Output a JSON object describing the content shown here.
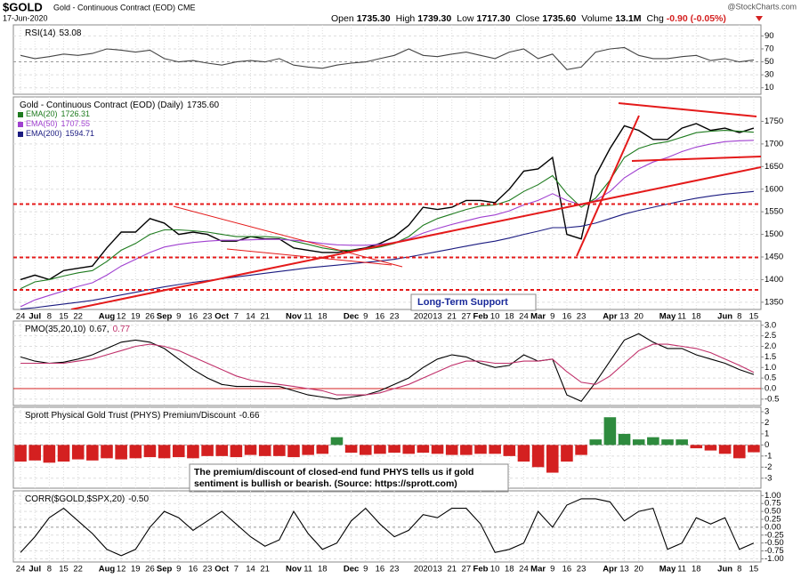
{
  "header": {
    "symbol": "$GOLD",
    "name": "Gold - Continuous Contract (EOD) CME",
    "date": "17-Jun-2020",
    "watermark": "@StockCharts.com",
    "quote": [
      {
        "label": "Open",
        "value": "1735.30"
      },
      {
        "label": "High",
        "value": "1739.30"
      },
      {
        "label": "Low",
        "value": "1717.30"
      },
      {
        "label": "Close",
        "value": "1735.60"
      },
      {
        "label": "Volume",
        "value": "13.1M"
      },
      {
        "label": "Chg",
        "value": "-0.90 (-0.05%)"
      }
    ]
  },
  "chart_data": [
    {
      "type": "line",
      "label": "RSI(14)",
      "last": "53.08",
      "ylim": [
        0,
        107
      ],
      "yticks": [
        10,
        30,
        50,
        70,
        90
      ],
      "grid": true,
      "series": [
        {
          "name": "RSI(14)",
          "color": "#444444",
          "values": [
            60,
            55,
            58,
            62,
            60,
            63,
            70,
            68,
            65,
            68,
            55,
            50,
            52,
            48,
            45,
            50,
            52,
            50,
            55,
            45,
            42,
            40,
            45,
            48,
            50,
            55,
            60,
            70,
            60,
            58,
            62,
            65,
            60,
            55,
            65,
            70,
            55,
            62,
            38,
            42,
            65,
            70,
            72,
            60,
            55,
            55,
            58,
            60,
            52,
            55,
            50,
            53
          ]
        }
      ]
    },
    {
      "type": "line",
      "legend": "list",
      "annotation": "Long-Term Support",
      "ylim": [
        1334,
        1804
      ],
      "yticks": [
        1350,
        1400,
        1450,
        1500,
        1550,
        1600,
        1650,
        1700,
        1750
      ],
      "grid": true,
      "categories": [
        "24",
        "Jul",
        "8",
        "15",
        "22",
        null,
        "Aug",
        "12",
        "19",
        "26",
        "Sep",
        "9",
        "16",
        "23",
        "Oct",
        "7",
        "14",
        "21",
        null,
        "Nov",
        "11",
        "18",
        null,
        "Dec",
        "9",
        "16",
        "23",
        null,
        "2020",
        "13",
        "21",
        "27",
        "Feb",
        "10",
        "18",
        "24",
        "Mar",
        "9",
        "16",
        "23",
        null,
        "Apr",
        "13",
        "20",
        null,
        "May",
        "11",
        "18",
        null,
        "Jun",
        "8",
        "15"
      ],
      "series": [
        {
          "name": "Gold - Continuous Contract (EOD) (Daily)",
          "last": "1735.60",
          "color": "#000000",
          "values": [
            1400,
            1410,
            1400,
            1420,
            1425,
            1430,
            1470,
            1505,
            1505,
            1535,
            1525,
            1500,
            1505,
            1500,
            1485,
            1485,
            1495,
            1490,
            1490,
            1470,
            1465,
            1460,
            1460,
            1465,
            1470,
            1480,
            1495,
            1520,
            1560,
            1555,
            1560,
            1575,
            1575,
            1570,
            1600,
            1640,
            1645,
            1670,
            1500,
            1490,
            1630,
            1690,
            1740,
            1730,
            1710,
            1710,
            1735,
            1745,
            1730,
            1735,
            1725,
            1735
          ]
        },
        {
          "name": "EMA(20)",
          "last": "1726.31",
          "color": "#1e7b1e",
          "values": [
            1380,
            1395,
            1400,
            1408,
            1415,
            1420,
            1440,
            1465,
            1480,
            1500,
            1510,
            1510,
            1508,
            1505,
            1500,
            1495,
            1495,
            1495,
            1493,
            1485,
            1478,
            1470,
            1465,
            1465,
            1467,
            1472,
            1480,
            1495,
            1520,
            1535,
            1545,
            1555,
            1563,
            1565,
            1575,
            1595,
            1610,
            1630,
            1590,
            1560,
            1580,
            1620,
            1670,
            1690,
            1700,
            1705,
            1715,
            1725,
            1728,
            1730,
            1728,
            1726
          ]
        },
        {
          "name": "EMA(50)",
          "last": "1707.55",
          "color": "#a040d0",
          "values": [
            1340,
            1355,
            1365,
            1375,
            1385,
            1393,
            1410,
            1430,
            1445,
            1460,
            1472,
            1478,
            1482,
            1485,
            1487,
            1487,
            1488,
            1489,
            1489,
            1487,
            1484,
            1480,
            1477,
            1476,
            1476,
            1478,
            1482,
            1490,
            1503,
            1513,
            1522,
            1530,
            1538,
            1543,
            1552,
            1565,
            1575,
            1590,
            1575,
            1565,
            1575,
            1595,
            1625,
            1645,
            1660,
            1670,
            1683,
            1693,
            1700,
            1705,
            1707,
            1708
          ]
        },
        {
          "name": "EMA(200)",
          "last": "1594.71",
          "color": "#1a1a80",
          "values": [
            1335,
            1338,
            1342,
            1346,
            1350,
            1354,
            1360,
            1366,
            1372,
            1378,
            1384,
            1389,
            1394,
            1398,
            1402,
            1406,
            1410,
            1414,
            1418,
            1422,
            1426,
            1429,
            1432,
            1435,
            1438,
            1441,
            1445,
            1450,
            1456,
            1462,
            1468,
            1474,
            1480,
            1485,
            1492,
            1500,
            1507,
            1515,
            1515,
            1518,
            1525,
            1535,
            1545,
            1553,
            1560,
            1567,
            1574,
            1580,
            1585,
            1589,
            1592,
            1595
          ]
        }
      ]
    },
    {
      "type": "line",
      "label": "PMO(35,20,10)",
      "ylim": [
        -0.8,
        3.2
      ],
      "yticks": [
        -0.5,
        {
          "value": 0,
          "label": "0.0"
        },
        0.5,
        {
          "value": 1,
          "label": "1.0"
        },
        1.5,
        {
          "value": 2,
          "label": "2.0"
        },
        2.5,
        {
          "value": 3,
          "label": "3.0"
        }
      ],
      "grid": true,
      "zero_line": true,
      "series": [
        {
          "name": "PMO",
          "last": "0.67,",
          "color": "#000000",
          "values": [
            1.5,
            1.3,
            1.2,
            1.25,
            1.4,
            1.6,
            1.9,
            2.2,
            2.3,
            2.2,
            1.9,
            1.4,
            0.9,
            0.5,
            0.2,
            0.1,
            0.1,
            0.1,
            0.1,
            -0.1,
            -0.3,
            -0.4,
            -0.5,
            -0.4,
            -0.3,
            -0.1,
            0.2,
            0.5,
            1.0,
            1.4,
            1.6,
            1.5,
            1.2,
            1.0,
            1.1,
            1.6,
            1.3,
            1.4,
            -0.3,
            -0.6,
            0.3,
            1.3,
            2.3,
            2.6,
            2.2,
            1.9,
            1.9,
            1.6,
            1.4,
            1.2,
            0.9,
            0.67
          ]
        },
        {
          "name": "Signal",
          "last": "0.77",
          "color": "#c0306a",
          "values": [
            1.2,
            1.2,
            1.2,
            1.2,
            1.3,
            1.4,
            1.6,
            1.8,
            2.0,
            2.1,
            2.0,
            1.8,
            1.5,
            1.2,
            0.9,
            0.6,
            0.4,
            0.3,
            0.2,
            0.1,
            0,
            -0.1,
            -0.3,
            -0.3,
            -0.3,
            -0.2,
            0,
            0.2,
            0.5,
            0.8,
            1.1,
            1.3,
            1.3,
            1.2,
            1.2,
            1.3,
            1.3,
            1.4,
            0.8,
            0.3,
            0.2,
            0.6,
            1.2,
            1.8,
            2.1,
            2.1,
            2.0,
            1.9,
            1.7,
            1.4,
            1.1,
            0.77
          ]
        }
      ]
    },
    {
      "type": "bar",
      "label": "Sprott Physical Gold Trust (PHYS) Premium/Discount",
      "last": "-0.66",
      "ylim": [
        -3.9,
        3.4
      ],
      "yticks": [
        -3,
        -2,
        -1,
        0,
        1,
        2,
        3
      ],
      "grid": true,
      "up_color": "#2e8b3e",
      "down_color": "#d42020",
      "note": [
        "The premium/discount of closed-end fund PHYS tells us if gold",
        "sentiment is bullish or bearish. (Source: https://sprott.com)"
      ],
      "values": [
        -1.5,
        -1.4,
        -1.6,
        -1.5,
        -1.3,
        -1.4,
        -1.2,
        -1.3,
        -1.2,
        -1.1,
        -1.2,
        -1.1,
        -1.2,
        -1.0,
        -1.0,
        -1.1,
        -0.9,
        -1.0,
        -1.0,
        -1.1,
        -0.9,
        -0.8,
        0.7,
        -0.7,
        -0.9,
        -0.8,
        -0.7,
        -0.8,
        -0.7,
        -0.8,
        -0.9,
        -0.9,
        -0.8,
        -0.8,
        -1.0,
        -1.5,
        -2.0,
        -2.5,
        -1.5,
        -0.9,
        0.5,
        2.5,
        1.0,
        0.5,
        0.7,
        0.5,
        0.5,
        -0.3,
        -0.5,
        -0.8,
        -1.2,
        -0.66
      ]
    },
    {
      "type": "line",
      "label": "CORR($GOLD,$SPX,20)",
      "last": "-0.50",
      "ylim": [
        -1.1,
        1.15
      ],
      "grid": true,
      "yticks": [
        {
          "value": -1,
          "label": "-1.00"
        },
        {
          "value": -0.75,
          "label": "-0.75"
        },
        {
          "value": -0.5,
          "label": "-0.50"
        },
        {
          "value": -0.25,
          "label": "-0.25"
        },
        {
          "value": 0,
          "label": "0.00"
        },
        {
          "value": 0.25,
          "label": "0.25"
        },
        {
          "value": 0.5,
          "label": "0.50"
        },
        {
          "value": 0.75,
          "label": "0.75"
        },
        {
          "value": 1,
          "label": "1.00"
        }
      ],
      "categories": [
        "24",
        "Jul",
        "8",
        "15",
        "22",
        null,
        "Aug",
        "12",
        "19",
        "26",
        "Sep",
        "9",
        "16",
        "23",
        "Oct",
        "7",
        "14",
        "21",
        null,
        "Nov",
        "11",
        "18",
        null,
        "Dec",
        "9",
        "16",
        "23",
        null,
        "2020",
        "13",
        "21",
        "27",
        "Feb",
        "10",
        "18",
        "24",
        "Mar",
        "9",
        "16",
        "23",
        null,
        "Apr",
        "13",
        "20",
        null,
        "May",
        "11",
        "18",
        null,
        "Jun",
        "8",
        "15"
      ],
      "series": [
        {
          "name": "CORR($GOLD,$SPX,20)",
          "color": "#000000",
          "values": [
            -0.8,
            -0.3,
            0.3,
            0.6,
            0.2,
            -0.2,
            -0.7,
            -0.9,
            -0.7,
            0,
            0.5,
            0.3,
            -0.1,
            0.2,
            0.5,
            0.1,
            -0.3,
            -0.6,
            -0.4,
            0.5,
            -0.2,
            -0.7,
            -0.5,
            0.2,
            0.6,
            0.1,
            -0.3,
            -0.1,
            0.4,
            0.3,
            0.6,
            0.6,
            0.1,
            -0.8,
            -0.7,
            -0.5,
            0.5,
            0,
            0.7,
            0.9,
            0.9,
            0.8,
            0.2,
            0.5,
            0.6,
            -0.7,
            -0.5,
            0.3,
            0.1,
            0.3,
            -0.7,
            -0.5
          ]
        }
      ]
    }
  ]
}
